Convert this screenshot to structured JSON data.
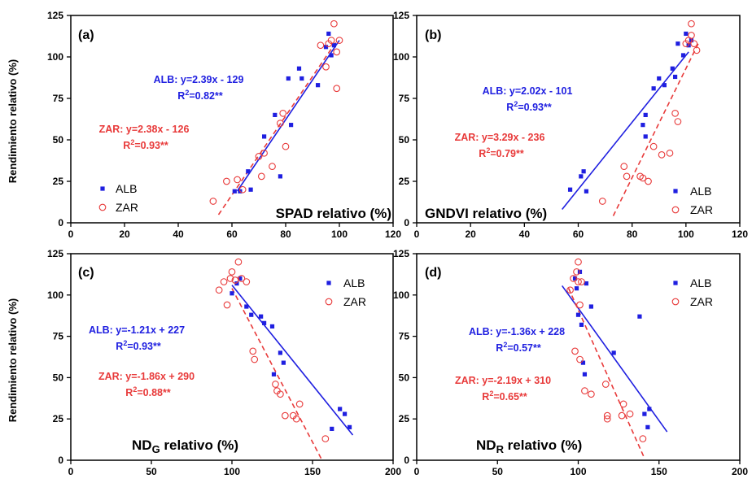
{
  "figure": {
    "y_axis_label": "Rendimiento relativo (%)",
    "colors": {
      "alb": "#1f1fe0",
      "zar": "#e83a3a",
      "axis": "#000000"
    }
  },
  "chart_data": [
    {
      "type": "scatter",
      "panel_label": "(a)",
      "xlabel": {
        "text": "SPAD relativo (%)"
      },
      "ylabel": "Rendimiento relativo (%)",
      "xlim": [
        0,
        120
      ],
      "ylim": [
        0,
        125
      ],
      "xticks": [
        0,
        20,
        40,
        60,
        80,
        100,
        120
      ],
      "yticks": [
        0,
        25,
        50,
        75,
        100,
        125
      ],
      "legend": {
        "position": "bottom-left",
        "entries": [
          "ALB",
          "ZAR"
        ]
      },
      "series": [
        {
          "name": "ALB",
          "marker": "square",
          "points": [
            [
              61,
              19
            ],
            [
              63,
              19
            ],
            [
              66,
              31
            ],
            [
              67,
              20
            ],
            [
              72,
              52
            ],
            [
              76,
              65
            ],
            [
              78,
              28
            ],
            [
              81,
              87
            ],
            [
              82,
              59
            ],
            [
              85,
              93
            ],
            [
              86,
              87
            ],
            [
              92,
              83
            ],
            [
              95,
              106
            ],
            [
              96,
              114
            ],
            [
              97,
              101
            ],
            [
              98,
              107
            ]
          ]
        },
        {
          "name": "ZAR",
          "marker": "circle",
          "points": [
            [
              53,
              13
            ],
            [
              58,
              25
            ],
            [
              62,
              26
            ],
            [
              64,
              20
            ],
            [
              70,
              40
            ],
            [
              71,
              28
            ],
            [
              72,
              42
            ],
            [
              75,
              34
            ],
            [
              78,
              60
            ],
            [
              79,
              66
            ],
            [
              80,
              46
            ],
            [
              93,
              107
            ],
            [
              95,
              94
            ],
            [
              96,
              108
            ],
            [
              97,
              110
            ],
            [
              98,
              120
            ],
            [
              99,
              81
            ],
            [
              99,
              103
            ],
            [
              100,
              110
            ]
          ]
        }
      ],
      "fits": [
        {
          "series": "ALB",
          "equation": "ALB: y=2.39x - 129",
          "r2": "0.82**",
          "slope": 2.39,
          "intercept": -129,
          "x_range": [
            62,
            100
          ],
          "style": "solid"
        },
        {
          "series": "ZAR",
          "equation": "ZAR: y=2.38x - 126",
          "r2": "0.93**",
          "slope": 2.38,
          "intercept": -126,
          "x_range": [
            55,
            99
          ],
          "style": "dashed"
        }
      ]
    },
    {
      "type": "scatter",
      "panel_label": "(b)",
      "xlabel": {
        "text": "GNDVI relativo (%)"
      },
      "ylabel": "Rendimiento relativo (%)",
      "xlim": [
        0,
        120
      ],
      "ylim": [
        0,
        125
      ],
      "xticks": [
        0,
        20,
        40,
        60,
        80,
        100,
        120
      ],
      "yticks": [
        0,
        25,
        50,
        75,
        100,
        125
      ],
      "legend": {
        "position": "bottom-right",
        "entries": [
          "ALB",
          "ZAR"
        ]
      },
      "series": [
        {
          "name": "ALB",
          "marker": "square",
          "points": [
            [
              57,
              20
            ],
            [
              61,
              28
            ],
            [
              62,
              31
            ],
            [
              63,
              19
            ],
            [
              84,
              59
            ],
            [
              85,
              65
            ],
            [
              85,
              52
            ],
            [
              88,
              81
            ],
            [
              90,
              87
            ],
            [
              92,
              83
            ],
            [
              95,
              93
            ],
            [
              96,
              88
            ],
            [
              97,
              108
            ],
            [
              99,
              101
            ],
            [
              100,
              114
            ],
            [
              101,
              107
            ],
            [
              102,
              110
            ]
          ]
        },
        {
          "name": "ZAR",
          "marker": "circle",
          "points": [
            [
              69,
              13
            ],
            [
              77,
              34
            ],
            [
              78,
              28
            ],
            [
              83,
              28
            ],
            [
              84,
              27
            ],
            [
              86,
              25
            ],
            [
              88,
              46
            ],
            [
              91,
              41
            ],
            [
              94,
              42
            ],
            [
              96,
              66
            ],
            [
              97,
              61
            ],
            [
              100,
              108
            ],
            [
              101,
              110
            ],
            [
              102,
              113
            ],
            [
              102,
              120
            ],
            [
              103,
              108
            ],
            [
              104,
              104
            ]
          ]
        }
      ],
      "fits": [
        {
          "series": "ALB",
          "equation": "ALB: y=2.02x - 101",
          "r2": "0.93**",
          "slope": 2.02,
          "intercept": -101,
          "x_range": [
            54,
            101
          ],
          "style": "solid"
        },
        {
          "series": "ZAR",
          "equation": "ZAR: y=3.29x - 236",
          "r2": "0.79**",
          "slope": 3.29,
          "intercept": -236,
          "x_range": [
            73,
            105
          ],
          "style": "dashed"
        }
      ]
    },
    {
      "type": "scatter",
      "panel_label": "(c)",
      "xlabel": {
        "main": "ND",
        "sub": "G",
        "rest": " relativo (%)"
      },
      "ylabel": "Rendimiento relativo (%)",
      "xlim": [
        0,
        200
      ],
      "ylim": [
        0,
        125
      ],
      "xticks": [
        0,
        50,
        100,
        150,
        200
      ],
      "yticks": [
        0,
        25,
        50,
        75,
        100,
        125
      ],
      "legend": {
        "position": "top-right",
        "entries": [
          "ALB",
          "ZAR"
        ]
      },
      "series": [
        {
          "name": "ALB",
          "marker": "square",
          "points": [
            [
              100,
              101
            ],
            [
              103,
              107
            ],
            [
              105,
              110
            ],
            [
              109,
              93
            ],
            [
              112,
              88
            ],
            [
              118,
              87
            ],
            [
              120,
              83
            ],
            [
              125,
              81
            ],
            [
              126,
              52
            ],
            [
              130,
              65
            ],
            [
              132,
              59
            ],
            [
              162,
              19
            ],
            [
              167,
              31
            ],
            [
              170,
              28
            ],
            [
              173,
              20
            ]
          ]
        },
        {
          "name": "ZAR",
          "marker": "circle",
          "points": [
            [
              92,
              103
            ],
            [
              95,
              108
            ],
            [
              97,
              94
            ],
            [
              99,
              110
            ],
            [
              100,
              114
            ],
            [
              102,
              109
            ],
            [
              104,
              120
            ],
            [
              106,
              110
            ],
            [
              109,
              108
            ],
            [
              113,
              66
            ],
            [
              114,
              61
            ],
            [
              127,
              46
            ],
            [
              128,
              42
            ],
            [
              130,
              40
            ],
            [
              133,
              27
            ],
            [
              138,
              27
            ],
            [
              140,
              25
            ],
            [
              142,
              34
            ],
            [
              158,
              13
            ]
          ]
        }
      ],
      "fits": [
        {
          "series": "ALB",
          "equation": "ALB: y=-1.21x + 227",
          "r2": "0.93**",
          "slope": -1.21,
          "intercept": 227,
          "x_range": [
            100,
            175
          ],
          "style": "solid"
        },
        {
          "series": "ZAR",
          "equation": "ZAR: y=-1.86x + 290",
          "r2": "0.88**",
          "slope": -1.86,
          "intercept": 290,
          "x_range": [
            100,
            156
          ],
          "style": "dashed"
        }
      ]
    },
    {
      "type": "scatter",
      "panel_label": "(d)",
      "xlabel": {
        "main": "ND",
        "sub": "R",
        "rest": " relativo (%)"
      },
      "ylabel": "Rendimiento relativo (%)",
      "xlim": [
        0,
        200
      ],
      "ylim": [
        0,
        125
      ],
      "xticks": [
        0,
        50,
        100,
        150,
        200
      ],
      "yticks": [
        0,
        25,
        50,
        75,
        100,
        125
      ],
      "legend": {
        "position": "top-right",
        "entries": [
          "ALB",
          "ZAR"
        ]
      },
      "series": [
        {
          "name": "ALB",
          "marker": "square",
          "points": [
            [
              98,
              110
            ],
            [
              99,
              104
            ],
            [
              100,
              88
            ],
            [
              101,
              114
            ],
            [
              102,
              82
            ],
            [
              103,
              59
            ],
            [
              104,
              52
            ],
            [
              105,
              107
            ],
            [
              108,
              93
            ],
            [
              122,
              65
            ],
            [
              138,
              87
            ],
            [
              141,
              28
            ],
            [
              143,
              20
            ],
            [
              144,
              31
            ]
          ]
        },
        {
          "name": "ZAR",
          "marker": "circle",
          "points": [
            [
              95,
              103
            ],
            [
              97,
              110
            ],
            [
              98,
              66
            ],
            [
              99,
              114
            ],
            [
              100,
              108
            ],
            [
              100,
              120
            ],
            [
              101,
              94
            ],
            [
              101,
              61
            ],
            [
              102,
              108
            ],
            [
              104,
              42
            ],
            [
              108,
              40
            ],
            [
              117,
              46
            ],
            [
              118,
              27
            ],
            [
              118,
              25
            ],
            [
              127,
              27
            ],
            [
              128,
              34
            ],
            [
              132,
              28
            ],
            [
              140,
              13
            ]
          ]
        }
      ],
      "fits": [
        {
          "series": "ALB",
          "equation": "ALB: y=-1.36x + 228",
          "r2": "0.57**",
          "slope": -1.36,
          "intercept": 228,
          "x_range": [
            90,
            155
          ],
          "style": "solid"
        },
        {
          "series": "ZAR",
          "equation": "ZAR: y=-2.19x + 310",
          "r2": "0.65**",
          "slope": -2.19,
          "intercept": 310,
          "x_range": [
            94,
            141
          ],
          "style": "dashed"
        }
      ]
    }
  ]
}
